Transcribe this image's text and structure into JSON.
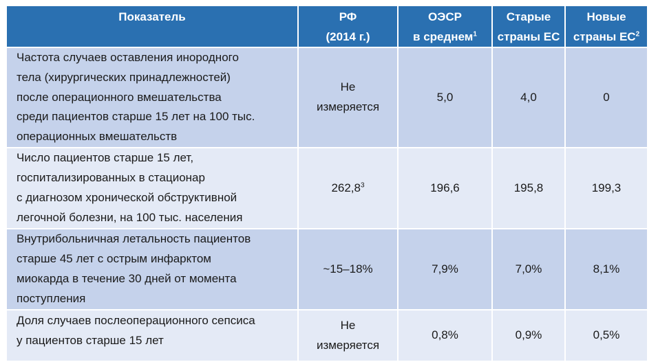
{
  "header": {
    "indicator": "Показатель",
    "rf_line1": "РФ",
    "rf_line2": "(2014 г.)",
    "oecd_line1": "ОЭСР",
    "oecd_line2": "в среднем",
    "oecd_sup": "1",
    "old_eu_line1": "Старые",
    "old_eu_line2": "страны ЕС",
    "new_eu_line1": "Новые",
    "new_eu_line2": "страны ЕС",
    "new_eu_sup": "2"
  },
  "rows": [
    {
      "indicator_lines": [
        "Частота случаев оставления инородного",
        "тела (хирургических принадлежностей)",
        "после операционного вмешательства",
        "среди пациентов старше 15 лет на 100 тыс.",
        "операционных вмешательств"
      ],
      "rf_lines": [
        "Не",
        "измеряется"
      ],
      "oecd": "5,0",
      "old_eu": "4,0",
      "new_eu": "0"
    },
    {
      "indicator_lines": [
        "Число пациентов старше 15 лет,",
        "госпитализированных в стационар",
        "с диагнозом хронической обструктивной",
        "легочной болезни, на 100 тыс. населения"
      ],
      "rf": "262,8",
      "rf_sup": "3",
      "oecd": "196,6",
      "old_eu": "195,8",
      "new_eu": "199,3"
    },
    {
      "indicator_lines": [
        "Внутрибольничная летальность пациентов",
        "старше 45 лет с острым инфарктом",
        "миокарда в течение 30 дней от момента",
        "поступления"
      ],
      "rf": "~15–18%",
      "oecd": "7,9%",
      "old_eu": "7,0%",
      "new_eu": "8,1%"
    },
    {
      "indicator_lines": [
        "Доля случаев послеоперационного сепсиса",
        "у пациентов старше 15 лет"
      ],
      "rf_lines": [
        "Не",
        "измеряется"
      ],
      "oecd": "0,8%",
      "old_eu": "0,9%",
      "new_eu": "0,5%"
    }
  ]
}
